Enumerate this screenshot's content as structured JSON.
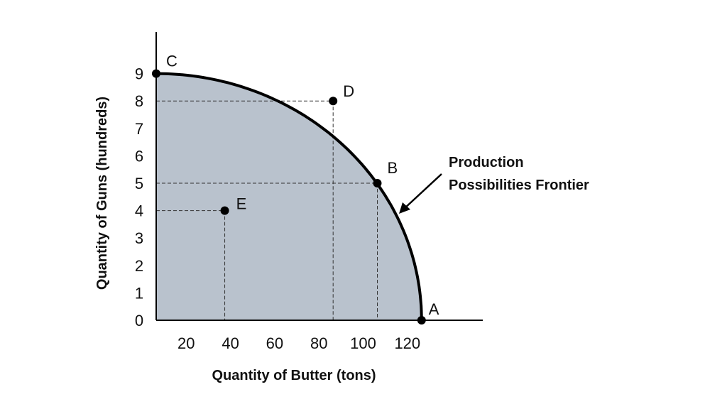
{
  "chart_data": {
    "type": "area",
    "xlabel": "Quantity of Butter (tons)",
    "ylabel": "Quantity of Guns (hundreds)",
    "x_ticks": [
      "20",
      "40",
      "60",
      "80",
      "100",
      "120"
    ],
    "y_ticks": [
      "0",
      "1",
      "2",
      "3",
      "4",
      "5",
      "6",
      "7",
      "8",
      "9"
    ],
    "xlim": [
      0,
      150
    ],
    "ylim": [
      0,
      10
    ],
    "frontier": {
      "label": "Production Possibilities Frontier",
      "x_intercept": 120,
      "y_intercept": 9
    },
    "points": [
      {
        "label": "A",
        "x": 120,
        "y": 0
      },
      {
        "label": "B",
        "x": 100,
        "y": 5
      },
      {
        "label": "C",
        "x": 0,
        "y": 9
      },
      {
        "label": "D",
        "x": 80,
        "y": 8
      },
      {
        "label": "E",
        "x": 31,
        "y": 4
      }
    ],
    "reference_lines": [
      {
        "point": "D",
        "dashed": true
      },
      {
        "point": "B",
        "dashed": true
      },
      {
        "point": "E",
        "dashed": true
      }
    ],
    "colors": {
      "fill": "#b9c2cd",
      "frontier": "#000000",
      "axis": "#000000"
    },
    "grid": false
  }
}
